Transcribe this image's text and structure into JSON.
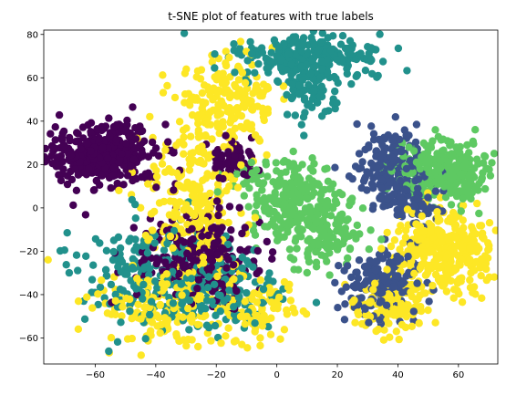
{
  "chart_data": {
    "type": "scatter",
    "title": "t-SNE plot of features with true labels",
    "xlabel": "",
    "ylabel": "",
    "xlim": [
      -77,
      73
    ],
    "ylim": [
      -72,
      82
    ],
    "xticks": [
      -60,
      -40,
      -20,
      0,
      20,
      40,
      60
    ],
    "yticks": [
      -60,
      -40,
      -20,
      0,
      20,
      40,
      60,
      80
    ],
    "grid": false,
    "legend": "none",
    "clusters": [
      {
        "color": "#440154",
        "cx": -58,
        "cy": 25,
        "sx": 9,
        "sy": 7,
        "n": 420
      },
      {
        "color": "#440154",
        "cx": -25,
        "cy": -25,
        "sx": 10,
        "sy": 12,
        "n": 260
      },
      {
        "color": "#440154",
        "cx": -15,
        "cy": 22,
        "sx": 4,
        "sy": 5,
        "n": 70
      },
      {
        "color": "#3b528b",
        "cx": 38,
        "cy": 17,
        "sx": 5,
        "sy": 10,
        "n": 230
      },
      {
        "color": "#3b528b",
        "cx": 34,
        "cy": -35,
        "sx": 6,
        "sy": 7,
        "n": 190
      },
      {
        "color": "#3b528b",
        "cx": 46,
        "cy": 2,
        "sx": 4,
        "sy": 6,
        "n": 60
      },
      {
        "color": "#21918c",
        "cx": 10,
        "cy": 70,
        "sx": 12,
        "sy": 5,
        "n": 240
      },
      {
        "color": "#21918c",
        "cx": 12,
        "cy": 55,
        "sx": 5,
        "sy": 8,
        "n": 80
      },
      {
        "color": "#21918c",
        "cx": -45,
        "cy": -30,
        "sx": 10,
        "sy": 12,
        "n": 180
      },
      {
        "color": "#21918c",
        "cx": -20,
        "cy": -38,
        "sx": 10,
        "sy": 10,
        "n": 170
      },
      {
        "color": "#5ec962",
        "cx": 5,
        "cy": 5,
        "sx": 8,
        "sy": 9,
        "n": 240
      },
      {
        "color": "#5ec962",
        "cx": 15,
        "cy": -12,
        "sx": 7,
        "sy": 7,
        "n": 120
      },
      {
        "color": "#5ec962",
        "cx": 55,
        "cy": 17,
        "sx": 8,
        "sy": 7,
        "n": 280
      },
      {
        "color": "#fde725",
        "cx": -28,
        "cy": 0,
        "sx": 8,
        "sy": 22,
        "n": 300
      },
      {
        "color": "#fde725",
        "cx": -15,
        "cy": 50,
        "sx": 7,
        "sy": 10,
        "n": 160
      },
      {
        "color": "#fde725",
        "cx": 55,
        "cy": -20,
        "sx": 8,
        "sy": 10,
        "n": 330
      },
      {
        "color": "#fde725",
        "cx": 38,
        "cy": -45,
        "sx": 6,
        "sy": 6,
        "n": 130
      },
      {
        "color": "#fde725",
        "cx": -35,
        "cy": -45,
        "sx": 12,
        "sy": 10,
        "n": 180
      },
      {
        "color": "#fde725",
        "cx": -5,
        "cy": -45,
        "sx": 6,
        "sy": 7,
        "n": 70
      }
    ]
  }
}
